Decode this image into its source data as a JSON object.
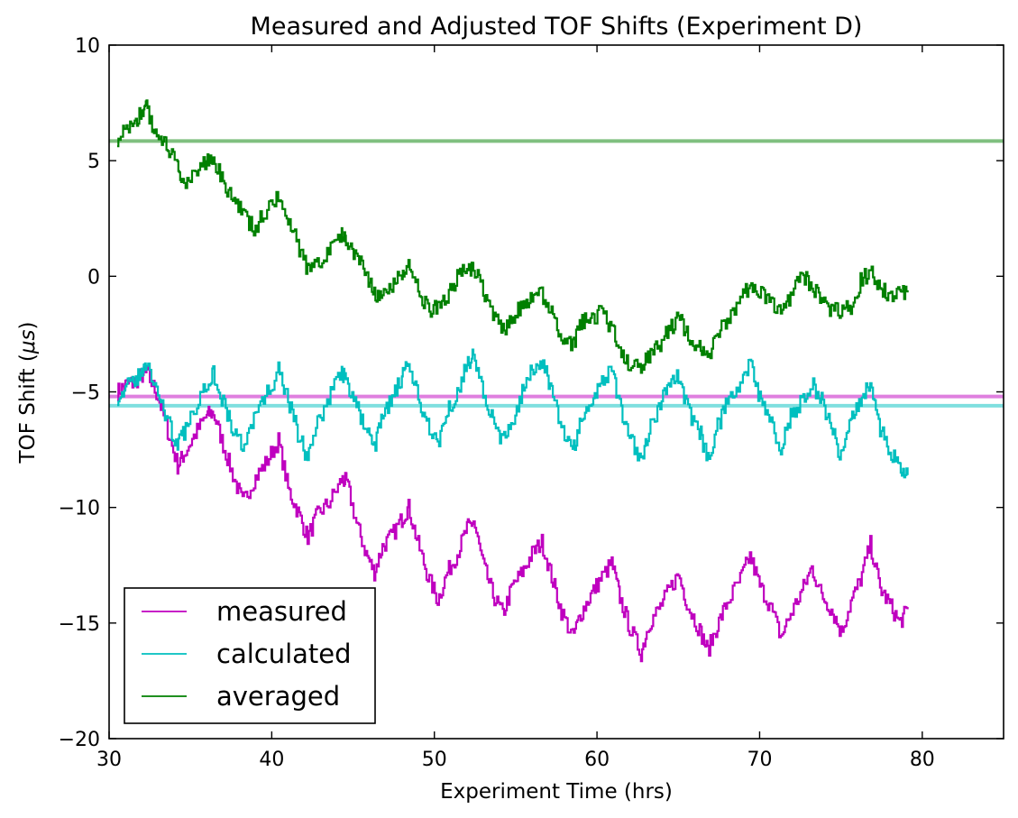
{
  "chart_data": {
    "type": "line",
    "title": "Measured and Adjusted TOF Shifts (Experiment D)",
    "xlabel": "Experiment Time (hrs)",
    "ylabel": "TOF Shift (",
    "ylabel_symbol": "μs",
    "ylabel_close": ")",
    "xlim": [
      30,
      85
    ],
    "ylim": [
      -20,
      10
    ],
    "xticks": [
      30,
      40,
      50,
      60,
      70,
      80
    ],
    "yticks": [
      -20,
      -15,
      -10,
      -5,
      0,
      5,
      10
    ],
    "xtick_labels": [
      "30",
      "40",
      "50",
      "60",
      "70",
      "80"
    ],
    "ytick_labels": [
      "−20",
      "−15",
      "−10",
      "−5",
      "0",
      "5",
      "10"
    ],
    "grid": false,
    "legend_position": "lower-left",
    "series": [
      {
        "name": "measured",
        "color": "#bf00bf",
        "x": [
          30.5,
          31.0,
          31.5,
          32.0,
          32.3,
          33.0,
          33.6,
          34.2,
          34.6,
          35.3,
          36.0,
          36.4,
          37.0,
          37.6,
          38.2,
          38.9,
          39.6,
          40.4,
          41.0,
          41.6,
          42.2,
          42.8,
          43.5,
          44.3,
          44.6,
          45.2,
          45.8,
          46.3,
          46.8,
          47.4,
          48.0,
          48.4,
          49.0,
          49.6,
          50.2,
          50.8,
          51.4,
          52.0,
          52.4,
          53.0,
          53.6,
          54.2,
          54.8,
          55.4,
          56.0,
          56.6,
          57.2,
          57.8,
          58.5,
          59.0,
          59.6,
          60.2,
          60.9,
          61.4,
          62.0,
          62.7,
          63.2,
          63.8,
          64.4,
          65.0,
          65.6,
          66.3,
          66.8,
          67.4,
          68.0,
          68.8,
          69.4,
          70.0,
          70.6,
          71.3,
          71.9,
          72.6,
          73.2,
          73.8,
          74.4,
          75.0,
          75.6,
          76.2,
          76.8,
          77.4,
          78.0,
          78.6,
          79.1
        ],
        "y": [
          -5.0,
          -4.7,
          -4.6,
          -4.3,
          -4.2,
          -5.2,
          -6.7,
          -8.2,
          -7.7,
          -6.8,
          -6.0,
          -5.9,
          -7.3,
          -8.6,
          -9.8,
          -8.8,
          -8.1,
          -7.1,
          -9.2,
          -10.2,
          -11.3,
          -10.3,
          -9.8,
          -8.8,
          -8.9,
          -10.7,
          -12.0,
          -12.8,
          -11.7,
          -11.2,
          -10.5,
          -10.0,
          -11.6,
          -13.0,
          -14.0,
          -12.8,
          -12.0,
          -10.9,
          -10.6,
          -12.5,
          -13.8,
          -14.6,
          -13.4,
          -12.8,
          -12.0,
          -11.5,
          -13.0,
          -14.5,
          -15.6,
          -14.6,
          -13.8,
          -13.1,
          -12.4,
          -13.9,
          -15.2,
          -16.3,
          -15.0,
          -14.4,
          -13.6,
          -12.9,
          -14.3,
          -15.3,
          -16.2,
          -15.1,
          -14.1,
          -13.1,
          -12.1,
          -13.4,
          -14.2,
          -15.6,
          -14.6,
          -13.6,
          -12.6,
          -13.8,
          -14.4,
          -15.4,
          -14.1,
          -13.1,
          -11.6,
          -13.5,
          -14.2,
          -15.0,
          -14.4
        ]
      },
      {
        "name": "calculated",
        "color": "#00bfbf",
        "x": [
          30.5,
          31.0,
          31.5,
          32.0,
          32.3,
          33.0,
          33.6,
          34.2,
          34.6,
          35.3,
          36.0,
          36.4,
          37.0,
          37.6,
          38.2,
          38.9,
          39.6,
          40.4,
          41.0,
          41.6,
          42.2,
          42.8,
          43.5,
          44.3,
          44.6,
          45.2,
          45.8,
          46.3,
          46.8,
          47.4,
          48.0,
          48.4,
          49.0,
          49.6,
          50.2,
          50.8,
          51.4,
          52.0,
          52.4,
          53.0,
          53.6,
          54.2,
          54.8,
          55.4,
          56.0,
          56.6,
          57.2,
          57.8,
          58.5,
          59.0,
          59.6,
          60.2,
          60.9,
          61.4,
          62.0,
          62.7,
          63.2,
          63.8,
          64.4,
          65.0,
          65.6,
          66.3,
          66.8,
          67.4,
          68.0,
          68.8,
          69.4,
          70.0,
          70.6,
          71.3,
          71.9,
          72.6,
          73.2,
          73.8,
          74.4,
          75.0,
          75.6,
          76.2,
          76.8,
          77.4,
          78.0,
          78.6,
          79.1
        ],
        "y": [
          -5.2,
          -4.9,
          -4.5,
          -4.2,
          -3.8,
          -5.0,
          -6.3,
          -7.3,
          -6.8,
          -5.6,
          -4.6,
          -4.2,
          -5.4,
          -6.7,
          -7.3,
          -6.2,
          -5.2,
          -4.1,
          -5.4,
          -6.8,
          -7.9,
          -6.4,
          -5.2,
          -4.1,
          -4.6,
          -5.6,
          -6.7,
          -7.4,
          -6.0,
          -5.3,
          -4.4,
          -3.8,
          -5.3,
          -6.4,
          -7.2,
          -5.8,
          -5.0,
          -3.8,
          -3.4,
          -5.0,
          -6.3,
          -7.2,
          -6.2,
          -5.0,
          -4.1,
          -3.6,
          -5.1,
          -6.5,
          -7.5,
          -6.3,
          -5.5,
          -4.6,
          -4.0,
          -5.6,
          -6.9,
          -7.9,
          -6.6,
          -5.7,
          -4.7,
          -4.3,
          -5.9,
          -6.7,
          -7.9,
          -6.5,
          -5.5,
          -4.7,
          -3.8,
          -5.3,
          -6.2,
          -7.4,
          -6.1,
          -5.3,
          -4.6,
          -5.4,
          -6.6,
          -7.8,
          -6.1,
          -5.3,
          -4.6,
          -6.6,
          -7.6,
          -8.3,
          -8.6
        ]
      },
      {
        "name": "averaged",
        "color": "#008000",
        "x": [
          30.5,
          31.0,
          31.5,
          32.0,
          32.3,
          32.7,
          33.1,
          33.6,
          34.2,
          34.6,
          35.3,
          36.0,
          36.4,
          37.0,
          37.6,
          38.2,
          38.9,
          39.6,
          40.4,
          41.0,
          41.6,
          42.2,
          42.8,
          43.5,
          44.3,
          44.6,
          45.2,
          45.8,
          46.3,
          46.8,
          47.4,
          48.0,
          48.4,
          49.0,
          49.6,
          50.2,
          50.8,
          51.4,
          52.0,
          52.4,
          53.0,
          53.6,
          54.2,
          54.8,
          55.4,
          56.0,
          56.6,
          57.2,
          57.8,
          58.5,
          59.0,
          59.6,
          60.2,
          60.9,
          61.4,
          62.0,
          62.7,
          63.2,
          63.8,
          64.4,
          65.0,
          65.6,
          66.3,
          66.8,
          67.4,
          68.0,
          68.8,
          69.4,
          70.0,
          70.6,
          71.3,
          71.9,
          72.6,
          73.2,
          73.8,
          74.4,
          75.0,
          75.6,
          76.2,
          76.8,
          77.4,
          78.0,
          78.6,
          79.1
        ],
        "y": [
          6.0,
          6.3,
          6.7,
          7.0,
          7.3,
          6.5,
          6.0,
          5.5,
          4.7,
          3.8,
          4.4,
          5.0,
          5.1,
          4.2,
          3.3,
          2.7,
          2.0,
          2.8,
          3.4,
          2.4,
          1.4,
          0.2,
          0.5,
          1.2,
          1.8,
          1.6,
          0.9,
          0.1,
          -0.8,
          -1.0,
          -0.4,
          0.2,
          0.4,
          -0.6,
          -1.5,
          -1.4,
          -0.8,
          -0.1,
          0.3,
          0.3,
          -0.6,
          -1.6,
          -2.3,
          -1.8,
          -1.2,
          -0.8,
          -0.7,
          -1.6,
          -2.5,
          -3.1,
          -2.0,
          -1.8,
          -1.6,
          -2.2,
          -3.2,
          -3.8,
          -4.1,
          -3.4,
          -3.0,
          -2.3,
          -1.8,
          -2.6,
          -3.1,
          -3.7,
          -2.5,
          -1.8,
          -1.1,
          -0.3,
          -0.7,
          -1.2,
          -1.6,
          -0.8,
          0.0,
          -0.4,
          -1.0,
          -1.5,
          -1.5,
          -1.3,
          -0.2,
          0.2,
          -0.4,
          -1.0,
          -0.8,
          -0.7
        ]
      }
    ],
    "reference_lines": [
      {
        "for_series": "averaged",
        "y": 5.85,
        "color": "#008000",
        "alpha": 0.5
      },
      {
        "for_series": "measured",
        "y": -5.2,
        "color": "#bf00bf",
        "alpha": 0.5
      },
      {
        "for_series": "calculated",
        "y": -5.6,
        "color": "#00bfbf",
        "alpha": 0.5
      }
    ]
  }
}
